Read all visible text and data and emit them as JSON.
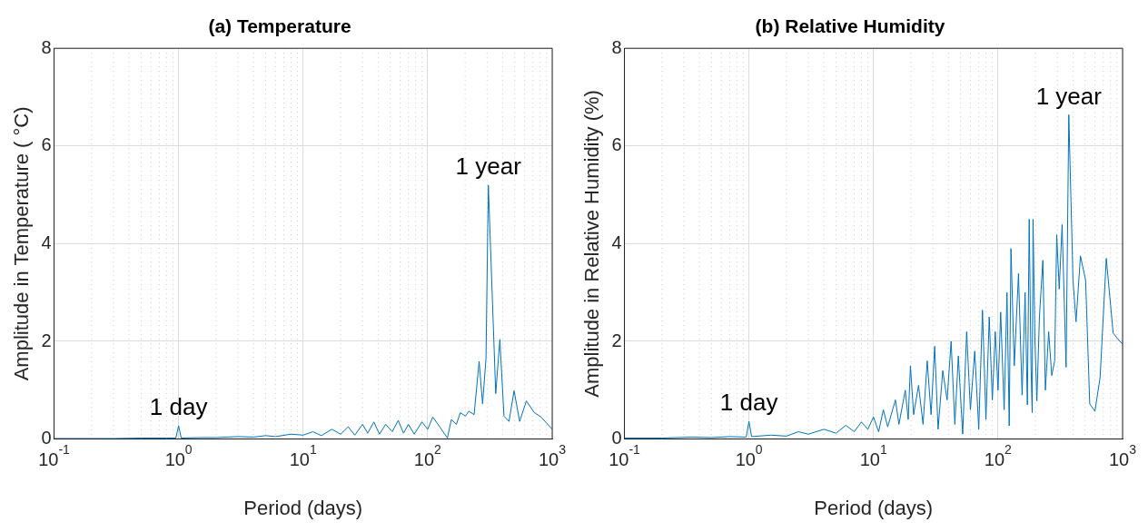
{
  "chart_data": [
    {
      "type": "line",
      "title": "(a) Temperature",
      "xlabel": "Period (days)",
      "ylabel": "Amplitude in Temperature ( °C)",
      "log": "x",
      "grid": true,
      "xlim": [
        0.1,
        1000
      ],
      "xticks": [
        {
          "value": 0.1,
          "label": "10$^{-1}$"
        },
        {
          "value": 1,
          "label": "10$^{0}$"
        },
        {
          "value": 10,
          "label": "10$^{1}$"
        },
        {
          "value": 100,
          "label": "10$^{2}$"
        },
        {
          "value": 1000,
          "label": "10$^{3}$"
        }
      ],
      "ylim": [
        0,
        8
      ],
      "yticks": [
        0,
        2,
        4,
        6,
        8
      ],
      "annotations": [
        {
          "text": "1 day",
          "x": 1,
          "y": 0.27
        },
        {
          "text": "1 year",
          "x": 307,
          "y": 5.2
        }
      ],
      "series": [
        {
          "color": "#0072bd",
          "x": [
            0.1,
            0.3,
            0.5,
            0.8,
            0.95,
            1.0,
            1.05,
            1.5,
            2,
            3,
            4,
            5,
            6,
            8,
            10,
            12,
            14,
            17,
            20,
            23,
            26,
            30,
            33,
            37,
            41,
            46,
            52,
            58,
            64,
            70,
            78,
            90,
            100,
            110,
            125,
            144,
            155,
            170,
            183,
            201,
            214,
            236,
            259,
            276,
            294,
            307,
            352,
            380,
            410,
            450,
            494,
            548,
            620,
            720,
            814,
            1000
          ],
          "values": [
            0.01,
            0.01,
            0.02,
            0.02,
            0.02,
            0.27,
            0.02,
            0.03,
            0.03,
            0.05,
            0.04,
            0.07,
            0.05,
            0.1,
            0.08,
            0.15,
            0.07,
            0.2,
            0.1,
            0.25,
            0.08,
            0.3,
            0.12,
            0.35,
            0.1,
            0.3,
            0.15,
            0.38,
            0.12,
            0.3,
            0.1,
            0.35,
            0.2,
            0.45,
            0.25,
            0.02,
            0.4,
            0.3,
            0.54,
            0.47,
            0.57,
            0.5,
            1.59,
            0.72,
            1.65,
            5.2,
            0.93,
            2.04,
            0.47,
            0.36,
            0.99,
            0.36,
            0.78,
            0.54,
            0.45,
            0.2
          ]
        }
      ]
    },
    {
      "type": "line",
      "title": "(b) Relative Humidity",
      "xlabel": "Period (days)",
      "ylabel": "Amplitude in Relative Humidity (%)",
      "log": "x",
      "grid": true,
      "xlim": [
        0.1,
        1000
      ],
      "xticks": [
        {
          "value": 0.1,
          "label": "10$^{-1}$"
        },
        {
          "value": 1,
          "label": "10$^{0}$"
        },
        {
          "value": 10,
          "label": "10$^{1}$"
        },
        {
          "value": 100,
          "label": "10$^{2}$"
        },
        {
          "value": 1000,
          "label": "10$^{3}$"
        }
      ],
      "ylim": [
        0,
        8
      ],
      "yticks": [
        0,
        2,
        4,
        6,
        8
      ],
      "annotations": [
        {
          "text": "1 day",
          "x": 1,
          "y": 0.36
        },
        {
          "text": "1 year",
          "x": 370,
          "y": 6.64
        }
      ],
      "series": [
        {
          "color": "#0072bd",
          "x": [
            0.1,
            0.2,
            0.35,
            0.5,
            0.7,
            0.95,
            1.0,
            1.05,
            1.5,
            2,
            2.5,
            3,
            4,
            5,
            6,
            7,
            8,
            9,
            10,
            11,
            12,
            13,
            15,
            16,
            18,
            19,
            19.8,
            21,
            23,
            25,
            27,
            29,
            31,
            33,
            36,
            39,
            42,
            45,
            48,
            52,
            56,
            60,
            65,
            70,
            75,
            80,
            85,
            90,
            95,
            100,
            105,
            112,
            118,
            123,
            127,
            135,
            146,
            156,
            165,
            172,
            178,
            184,
            188,
            191,
            198,
            205,
            215,
            229,
            240,
            255,
            270,
            285,
            296,
            310,
            327,
            352,
            370,
            400,
            423,
            459,
            505,
            545,
            600,
            660,
            740,
            840,
            950,
            1000
          ],
          "values": [
            0.02,
            0.02,
            0.04,
            0.03,
            0.05,
            0.04,
            0.36,
            0.05,
            0.08,
            0.06,
            0.15,
            0.1,
            0.2,
            0.12,
            0.28,
            0.15,
            0.35,
            0.2,
            0.45,
            0.15,
            0.6,
            0.25,
            0.8,
            0.3,
            1.0,
            0.4,
            1.5,
            0.5,
            1.1,
            0.3,
            1.6,
            0.5,
            1.9,
            0.2,
            1.4,
            0.8,
            2.0,
            0.3,
            1.7,
            0.1,
            2.2,
            0.6,
            1.8,
            0.2,
            2.64,
            0.4,
            2.5,
            0.8,
            2.2,
            1.0,
            2.6,
            0.6,
            3.0,
            0.27,
            3.9,
            1.5,
            3.39,
            0.9,
            3.0,
            0.7,
            4.5,
            1.5,
            0.54,
            4.5,
            2.0,
            0.78,
            2.5,
            3.66,
            1.0,
            2.2,
            1.3,
            1.6,
            4.18,
            3.07,
            4.39,
            1.47,
            6.64,
            3.25,
            2.4,
            3.75,
            3.25,
            0.72,
            0.57,
            1.26,
            3.7,
            2.17,
            2.0,
            1.95
          ]
        }
      ]
    }
  ]
}
